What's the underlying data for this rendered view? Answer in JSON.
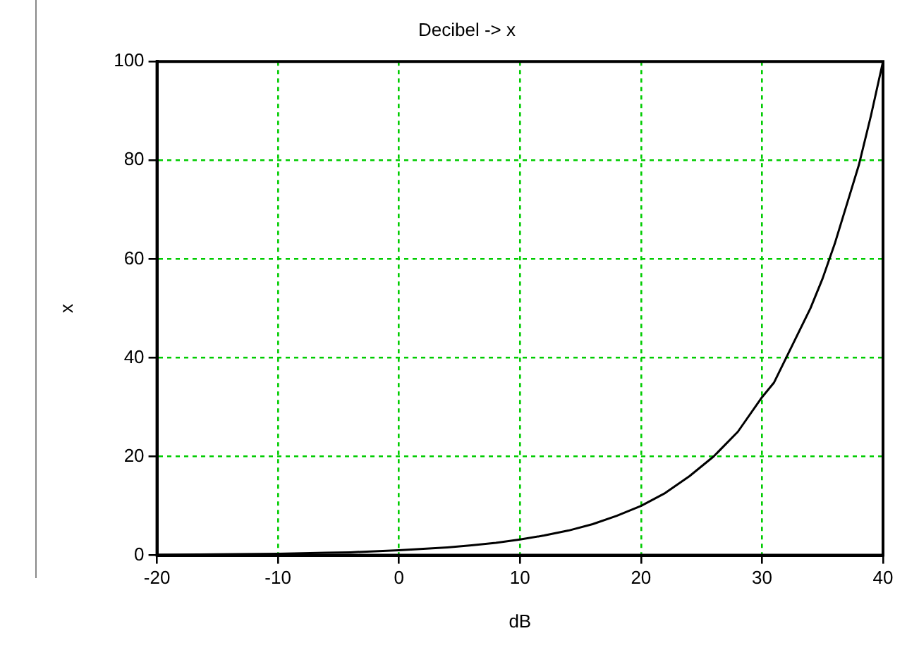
{
  "chart_data": {
    "type": "line",
    "title": "Decibel -> x",
    "xlabel": "dB",
    "ylabel": "x",
    "x": [
      -20,
      -15,
      -10,
      -6,
      -4,
      -2,
      0,
      2,
      4,
      6,
      8,
      10,
      12,
      14,
      16,
      18,
      20,
      22,
      24,
      26,
      28,
      30,
      31,
      32,
      33,
      34,
      35,
      36,
      37,
      38,
      39,
      40
    ],
    "series": [
      {
        "color": "#000000",
        "values": [
          0.1,
          0.2,
          0.3,
          0.5,
          0.6,
          0.8,
          1,
          1.3,
          1.6,
          2,
          2.5,
          3.2,
          4,
          5,
          6.3,
          8,
          10,
          12.6,
          16,
          20,
          25,
          32,
          35,
          40,
          45,
          50,
          56,
          63,
          71,
          79,
          89,
          100
        ]
      }
    ],
    "xlim": [
      -20,
      40
    ],
    "xticks": [
      -20,
      -10,
      0,
      10,
      20,
      30,
      40
    ],
    "ylim": [
      0,
      100
    ],
    "yticks": [
      0,
      20,
      40,
      60,
      80,
      100
    ],
    "grid": true,
    "legend": false,
    "marker": "none",
    "line_style": "solid"
  }
}
